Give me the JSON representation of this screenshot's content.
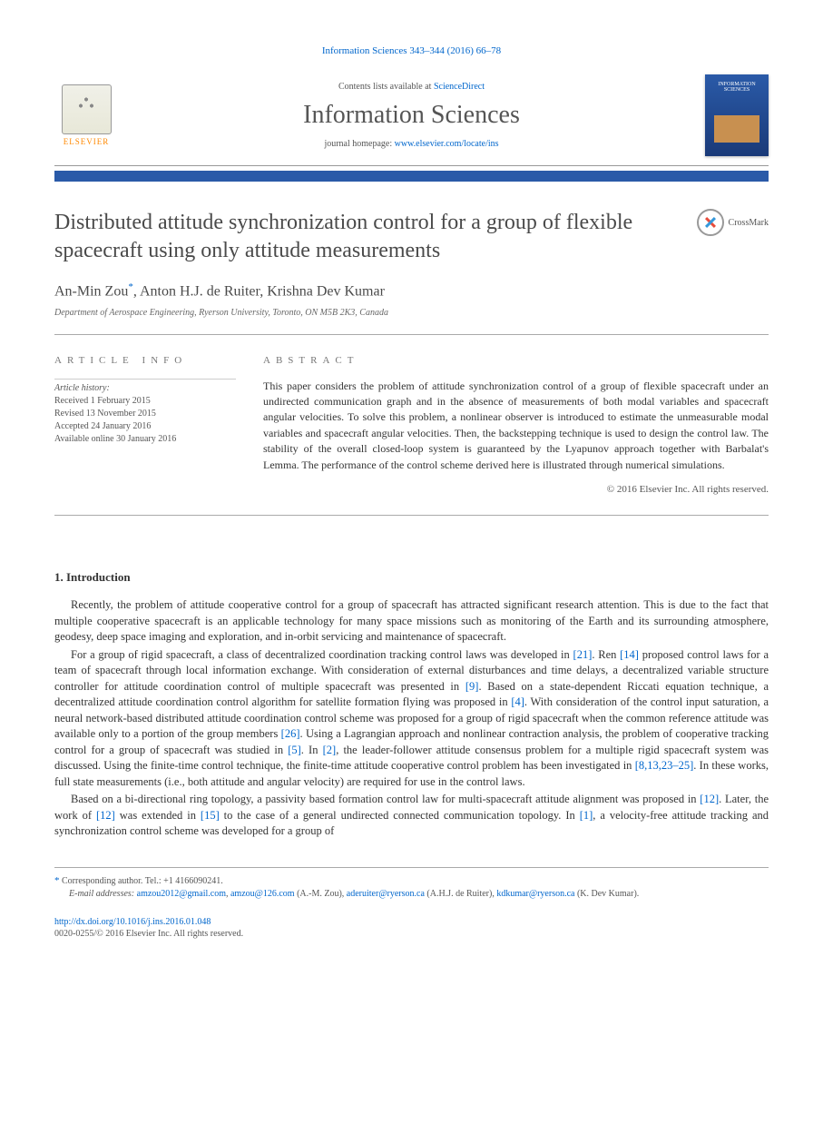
{
  "header": {
    "journal_ref": "Information Sciences 343–344 (2016) 66–78",
    "contents_prefix": "Contents lists available at ",
    "contents_link": "ScienceDirect",
    "journal_name": "Information Sciences",
    "homepage_prefix": "journal homepage: ",
    "homepage_url": "www.elsevier.com/locate/ins",
    "elsevier_label": "ELSEVIER",
    "cover_title": "INFORMATION SCIENCES"
  },
  "crossmark_label": "CrossMark",
  "title": "Distributed attitude synchronization control for a group of flexible spacecraft using only attitude measurements",
  "authors": {
    "a1_name": "An-Min Zou",
    "a1_mark": "*",
    "sep1": ", ",
    "a2_name": "Anton H.J. de Ruiter",
    "sep2": ", ",
    "a3_name": "Krishna Dev Kumar"
  },
  "affiliation": "Department of Aerospace Engineering, Ryerson University, Toronto, ON M5B 2K3, Canada",
  "info_heading": "ARTICLE INFO",
  "abstract_heading": "ABSTRACT",
  "history": {
    "label": "Article history:",
    "received": "Received 1 February 2015",
    "revised": "Revised 13 November 2015",
    "accepted": "Accepted 24 January 2016",
    "online": "Available online 30 January 2016"
  },
  "abstract_text": "This paper considers the problem of attitude synchronization control of a group of flexible spacecraft under an undirected communication graph and in the absence of measurements of both modal variables and spacecraft angular velocities. To solve this problem, a nonlinear observer is introduced to estimate the unmeasurable modal variables and spacecraft angular velocities. Then, the backstepping technique is used to design the control law. The stability of the overall closed-loop system is guaranteed by the Lyapunov approach together with Barbalat's Lemma. The performance of the control scheme derived here is illustrated through numerical simulations.",
  "copyright": "© 2016 Elsevier Inc. All rights reserved.",
  "intro_heading": "1. Introduction",
  "para1": "Recently, the problem of attitude cooperative control for a group of spacecraft has attracted significant research attention. This is due to the fact that multiple cooperative spacecraft is an applicable technology for many space missions such as monitoring of the Earth and its surrounding atmosphere, geodesy, deep space imaging and exploration, and in-orbit servicing and maintenance of spacecraft.",
  "para2_a": "For a group of rigid spacecraft, a class of decentralized coordination tracking control laws was developed in ",
  "para2_r1": "[21]",
  "para2_b": ". Ren ",
  "para2_r2": "[14]",
  "para2_c": " proposed control laws for a team of spacecraft through local information exchange. With consideration of external disturbances and time delays, a decentralized variable structure controller for attitude coordination control of multiple spacecraft was presented in ",
  "para2_r3": "[9]",
  "para2_d": ". Based on a state-dependent Riccati equation technique, a decentralized attitude coordination control algorithm for satellite formation flying was proposed in ",
  "para2_r4": "[4]",
  "para2_e": ". With consideration of the control input saturation, a neural network-based distributed attitude coordination control scheme was proposed for a group of rigid spacecraft when the common reference attitude was available only to a portion of the group members ",
  "para2_r5": "[26]",
  "para2_f": ". Using a Lagrangian approach and nonlinear contraction analysis, the problem of cooperative tracking control for a group of spacecraft was studied in ",
  "para2_r6": "[5]",
  "para2_g": ". In ",
  "para2_r7": "[2]",
  "para2_h": ", the leader-follower attitude consensus problem for a multiple rigid spacecraft system was discussed. Using the finite-time control technique, the finite-time attitude cooperative control problem has been investigated in ",
  "para2_r8": "[8,13,23–25]",
  "para2_i": ". In these works, full state measurements (i.e., both attitude and angular velocity) are required for use in the control laws.",
  "para3_a": "Based on a bi-directional ring topology, a passivity based formation control law for multi-spacecraft attitude alignment was proposed in ",
  "para3_r1": "[12]",
  "para3_b": ". Later, the work of ",
  "para3_r2": "[12]",
  "para3_c": " was extended in ",
  "para3_r3": "[15]",
  "para3_d": " to the case of a general undirected connected communication topology. In ",
  "para3_r4": "[1]",
  "para3_e": ", a velocity-free attitude tracking and synchronization control scheme was developed for a group of",
  "footer": {
    "corr_label": "Corresponding author. Tel.: +1 4166090241.",
    "emails_label": "E-mail addresses: ",
    "email1": "amzou2012@gmail.com",
    "email1_sep": ", ",
    "email2": "amzou@126.com",
    "email2_attr": " (A.-M. Zou), ",
    "email3": "aderuiter@ryerson.ca",
    "email3_attr": " (A.H.J. de Ruiter), ",
    "email4": "kdkumar@ryerson.ca",
    "email4_attr": " (K. Dev Kumar).",
    "doi": "http://dx.doi.org/10.1016/j.ins.2016.01.048",
    "issn": "0020-0255/© 2016 Elsevier Inc. All rights reserved."
  },
  "colors": {
    "link": "#0066cc",
    "bar": "#2a5aa8",
    "text": "#333333",
    "muted": "#555555"
  }
}
